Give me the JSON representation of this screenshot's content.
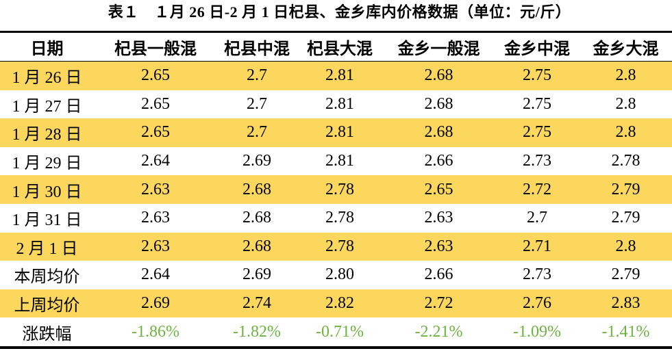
{
  "title": "表１　１月 26 日-2 月 1 日杞县、金乡库内价格数据（单位：元/斤）",
  "headers": [
    "日期",
    "杞县一般混",
    "杞县中混",
    "杞县大混",
    "金乡一般混",
    "金乡中混",
    "金乡大混"
  ],
  "rows": [
    {
      "label": "1 月 26 日",
      "values": [
        "2.65",
        "2.7",
        "2.81",
        "2.68",
        "2.75",
        "2.8"
      ]
    },
    {
      "label": "1 月 27 日",
      "values": [
        "2.65",
        "2.7",
        "2.81",
        "2.68",
        "2.75",
        "2.8"
      ]
    },
    {
      "label": "1 月 28 日",
      "values": [
        "2.65",
        "2.7",
        "2.81",
        "2.68",
        "2.75",
        "2.8"
      ]
    },
    {
      "label": "1 月 29 日",
      "values": [
        "2.64",
        "2.69",
        "2.81",
        "2.66",
        "2.73",
        "2.78"
      ]
    },
    {
      "label": "1 月 30 日",
      "values": [
        "2.63",
        "2.68",
        "2.78",
        "2.65",
        "2.72",
        "2.79"
      ]
    },
    {
      "label": "1 月 31 日",
      "values": [
        "2.63",
        "2.68",
        "2.78",
        "2.63",
        "2.7",
        "2.79"
      ]
    },
    {
      "label": "2 月 1 日",
      "values": [
        "2.63",
        "2.68",
        "2.78",
        "2.63",
        "2.71",
        "2.8"
      ]
    },
    {
      "label": "本周均价",
      "values": [
        "2.64",
        "2.69",
        "2.80",
        "2.66",
        "2.73",
        "2.79"
      ]
    },
    {
      "label": "上周均价",
      "values": [
        "2.69",
        "2.74",
        "2.82",
        "2.72",
        "2.76",
        "2.83"
      ]
    },
    {
      "label": "涨跌幅",
      "values": [
        "-1.86%",
        "-1.82%",
        "-0.71%",
        "-2.21%",
        "-1.09%",
        "-1.41%"
      ]
    }
  ],
  "colors": {
    "highlight": "#fbd75d",
    "change": "#6db33f"
  }
}
